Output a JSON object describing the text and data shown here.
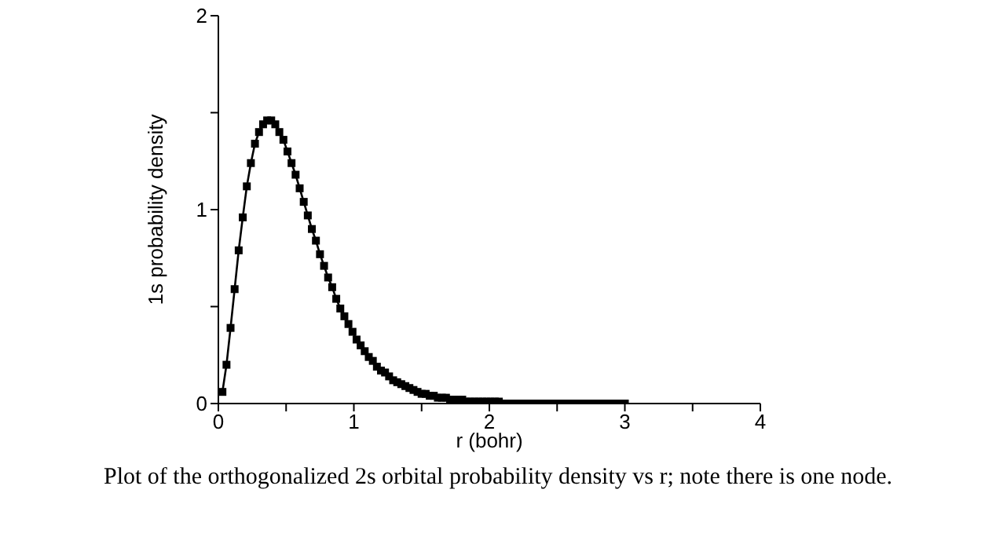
{
  "chart_data": {
    "type": "line",
    "xlabel": "r (bohr)",
    "ylabel": "1s probability density",
    "annotations": [
      "Plot of the orthogonalized 2s orbital probability density vs r; note there is one node."
    ],
    "x": [
      0.03,
      0.06,
      0.09,
      0.12,
      0.15,
      0.18,
      0.21,
      0.24,
      0.27,
      0.3,
      0.33,
      0.36,
      0.39,
      0.42,
      0.45,
      0.48,
      0.51,
      0.54,
      0.57,
      0.6,
      0.63,
      0.66,
      0.69,
      0.72,
      0.75,
      0.78,
      0.81,
      0.84,
      0.87,
      0.9,
      0.93,
      0.96,
      0.99,
      1.02,
      1.05,
      1.08,
      1.11,
      1.14,
      1.17,
      1.2,
      1.23,
      1.26,
      1.29,
      1.32,
      1.35,
      1.38,
      1.41,
      1.44,
      1.47,
      1.5,
      1.53,
      1.56,
      1.59,
      1.62,
      1.65,
      1.68,
      1.71,
      1.74,
      1.77,
      1.8,
      1.83,
      1.86,
      1.89,
      1.92,
      1.95,
      1.98,
      2.01,
      2.04,
      2.07,
      2.1,
      2.13,
      2.16,
      2.19,
      2.22,
      2.25,
      2.28,
      2.31,
      2.34,
      2.37,
      2.4,
      2.43,
      2.46,
      2.49,
      2.52,
      2.55,
      2.58,
      2.61,
      2.64,
      2.67,
      2.7,
      2.73,
      2.76,
      2.79,
      2.82,
      2.85,
      2.88,
      2.91,
      2.94,
      2.97,
      3.0
    ],
    "series": [
      {
        "color": "#000000",
        "values": [
          0.06,
          0.2,
          0.39,
          0.59,
          0.79,
          0.96,
          1.12,
          1.24,
          1.34,
          1.4,
          1.44,
          1.46,
          1.46,
          1.44,
          1.4,
          1.36,
          1.3,
          1.24,
          1.18,
          1.11,
          1.04,
          0.97,
          0.9,
          0.84,
          0.77,
          0.71,
          0.65,
          0.6,
          0.54,
          0.49,
          0.45,
          0.41,
          0.37,
          0.33,
          0.3,
          0.27,
          0.24,
          0.22,
          0.19,
          0.17,
          0.16,
          0.14,
          0.12,
          0.11,
          0.1,
          0.09,
          0.08,
          0.07,
          0.06,
          0.05,
          0.05,
          0.04,
          0.04,
          0.03,
          0.03,
          0.03,
          0.02,
          0.02,
          0.02,
          0.02,
          0.01,
          0.01,
          0.01,
          0.01,
          0.01,
          0.01,
          0.01,
          0.01,
          0.01,
          0,
          0,
          0,
          0,
          0,
          0,
          0,
          0,
          0,
          0,
          0,
          0,
          0,
          0,
          0,
          0,
          0,
          0,
          0,
          0,
          0,
          0,
          0,
          0,
          0,
          0,
          0,
          0,
          0,
          0,
          0
        ]
      }
    ],
    "xlim": [
      0,
      4
    ],
    "xticks": [
      0,
      {
        "value": 0.5,
        "label": null
      },
      1,
      {
        "value": 1.5,
        "label": null
      },
      2,
      {
        "value": 2.5,
        "label": null
      },
      3,
      {
        "value": 3.5,
        "label": null
      },
      4
    ],
    "ylim": [
      0,
      2
    ],
    "yticks": [
      0,
      {
        "value": 0.5,
        "label": null
      },
      1,
      {
        "value": 1.5,
        "label": null
      },
      2
    ],
    "grid": false,
    "legend": false,
    "marker": "square",
    "line_style": "solid"
  }
}
